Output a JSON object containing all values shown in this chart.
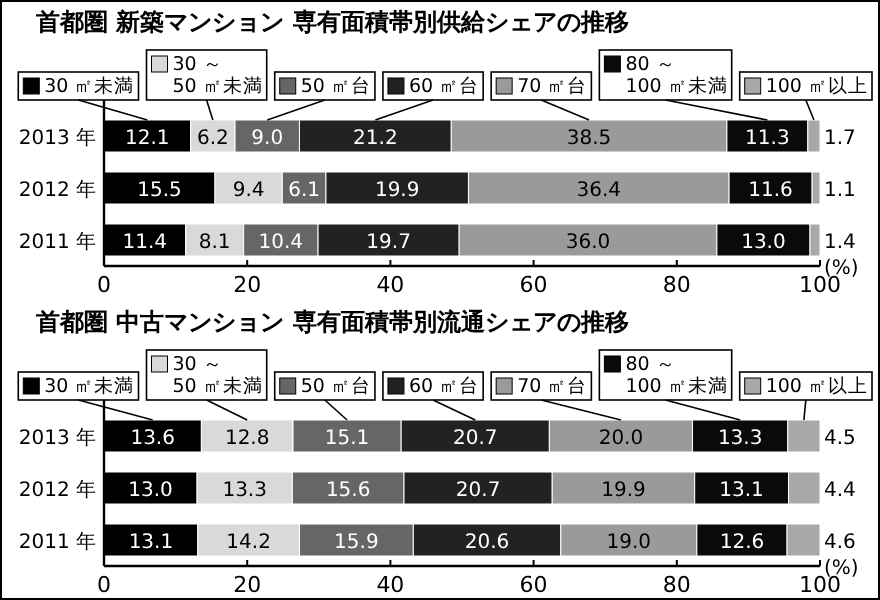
{
  "chart_data": [
    {
      "type": "bar",
      "orientation": "horizontal",
      "stacked": true,
      "title": "首都圏 新築マンション 専有面積帯別供給シェアの推移",
      "categories": [
        "2013 年",
        "2012 年",
        "2011 年"
      ],
      "xlim": [
        0,
        100
      ],
      "xticks": [
        0,
        20,
        40,
        60,
        80,
        100
      ],
      "xlabel": "(%)",
      "data_labels": true,
      "legend": "top",
      "grid": false,
      "series": [
        {
          "name": "30 ㎡未満",
          "color": "#000000",
          "values": [
            12.1,
            15.5,
            11.4
          ]
        },
        {
          "name": "30 ～\n50 ㎡未満",
          "color": "#d9d9d9",
          "values": [
            6.2,
            9.4,
            8.1
          ]
        },
        {
          "name": "50 ㎡台",
          "color": "#666666",
          "values": [
            9.0,
            6.1,
            10.4
          ],
          "value_labels": [
            "9.0",
            "6.1",
            "10.4"
          ]
        },
        {
          "name": "60 ㎡台",
          "color": "#222222",
          "values": [
            21.2,
            19.9,
            19.7
          ]
        },
        {
          "name": "70 ㎡台",
          "color": "#9a9a9a",
          "values": [
            38.5,
            36.4,
            36.0
          ],
          "value_labels": [
            "38.5",
            "36.4",
            "36.0"
          ]
        },
        {
          "name": "80 ～\n100 ㎡未満",
          "color": "#0a0a0a",
          "values": [
            11.3,
            11.6,
            13.0
          ],
          "value_labels": [
            "11.3",
            "11.6",
            "13.0"
          ]
        },
        {
          "name": "100 ㎡以上",
          "color": "#a8a8a8",
          "values": [
            1.7,
            1.1,
            1.4
          ]
        }
      ]
    },
    {
      "type": "bar",
      "orientation": "horizontal",
      "stacked": true,
      "title": "首都圏 中古マンション 専有面積帯別流通シェアの推移",
      "categories": [
        "2013 年",
        "2012 年",
        "2011 年"
      ],
      "xlim": [
        0,
        100
      ],
      "xticks": [
        0,
        20,
        40,
        60,
        80,
        100
      ],
      "xlabel": "(%)",
      "data_labels": true,
      "legend": "top",
      "grid": false,
      "series": [
        {
          "name": "30 ㎡未満",
          "color": "#000000",
          "values": [
            13.6,
            13.0,
            13.1
          ],
          "value_labels": [
            "13.6",
            "13.0",
            "13.1"
          ]
        },
        {
          "name": "30 ～\n50 ㎡未満",
          "color": "#d9d9d9",
          "values": [
            12.8,
            13.3,
            14.2
          ]
        },
        {
          "name": "50 ㎡台",
          "color": "#666666",
          "values": [
            15.1,
            15.6,
            15.9
          ]
        },
        {
          "name": "60 ㎡台",
          "color": "#222222",
          "values": [
            20.7,
            20.7,
            20.6
          ]
        },
        {
          "name": "70 ㎡台",
          "color": "#9a9a9a",
          "values": [
            20.0,
            19.9,
            19.0
          ],
          "value_labels": [
            "20.0",
            "19.9",
            "19.0"
          ]
        },
        {
          "name": "80 ～\n100 ㎡未満",
          "color": "#0a0a0a",
          "values": [
            13.3,
            13.1,
            12.6
          ]
        },
        {
          "name": "100 ㎡以上",
          "color": "#a8a8a8",
          "values": [
            4.5,
            4.4,
            4.6
          ]
        }
      ]
    }
  ]
}
